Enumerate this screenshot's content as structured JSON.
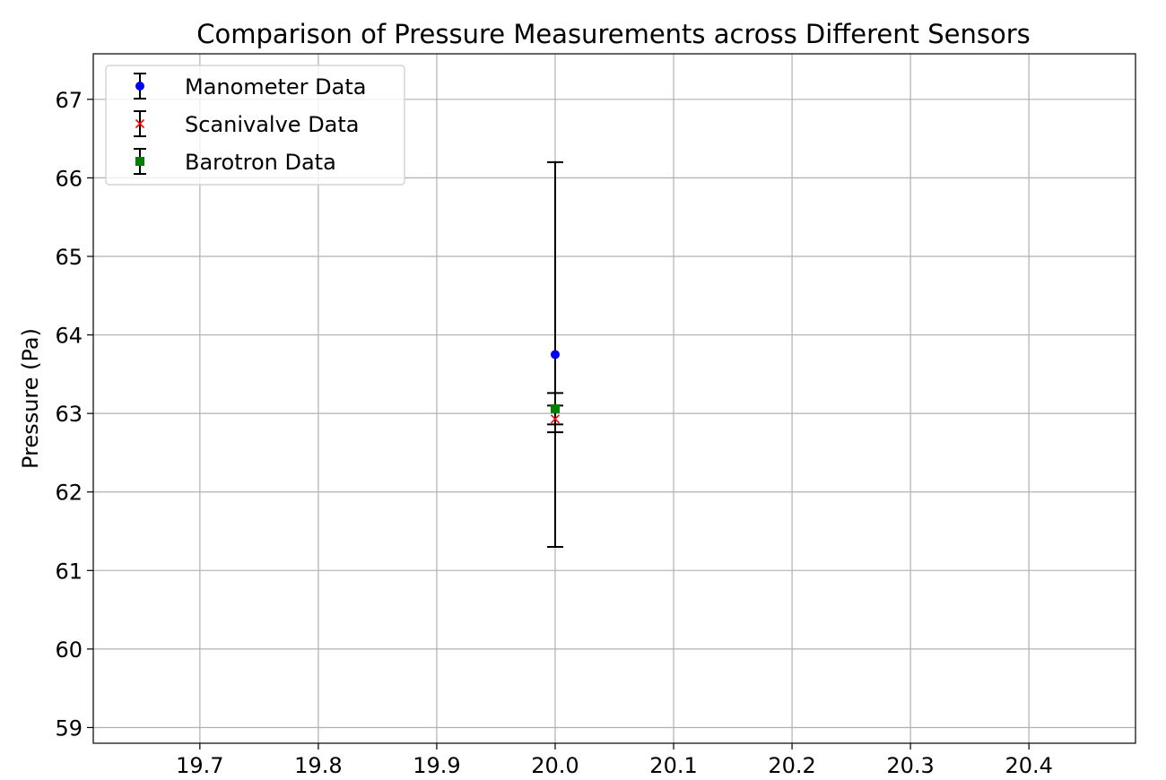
{
  "chart_data": {
    "type": "scatter",
    "title": "Comparison of Pressure Measurements across Different Sensors",
    "xlabel": "",
    "ylabel": "Pressure (Pa)",
    "xlim": [
      19.61,
      20.49
    ],
    "ylim": [
      58.8,
      67.58
    ],
    "x_ticks": [
      "19.7",
      "19.8",
      "19.9",
      "20.0",
      "20.1",
      "20.2",
      "20.3",
      "20.4"
    ],
    "y_ticks": [
      "59",
      "60",
      "61",
      "62",
      "63",
      "64",
      "65",
      "66",
      "67"
    ],
    "grid": true,
    "legend_position": "top-left",
    "series": [
      {
        "name": "Manometer Data",
        "marker": "circle",
        "color": "#0000ff",
        "x": [
          20.0
        ],
        "y": [
          63.75
        ],
        "yerr": [
          2.45
        ],
        "errorbar_color": "#000000"
      },
      {
        "name": "Scanivalve Data",
        "marker": "x",
        "color": "#ff0000",
        "x": [
          20.0
        ],
        "y": [
          62.93
        ],
        "yerr": [
          0.17
        ],
        "errorbar_color": "#000000"
      },
      {
        "name": "Barotron Data",
        "marker": "square",
        "color": "#008000",
        "x": [
          20.0
        ],
        "y": [
          63.06
        ],
        "yerr": [
          0.2
        ],
        "errorbar_color": "#000000"
      }
    ]
  }
}
